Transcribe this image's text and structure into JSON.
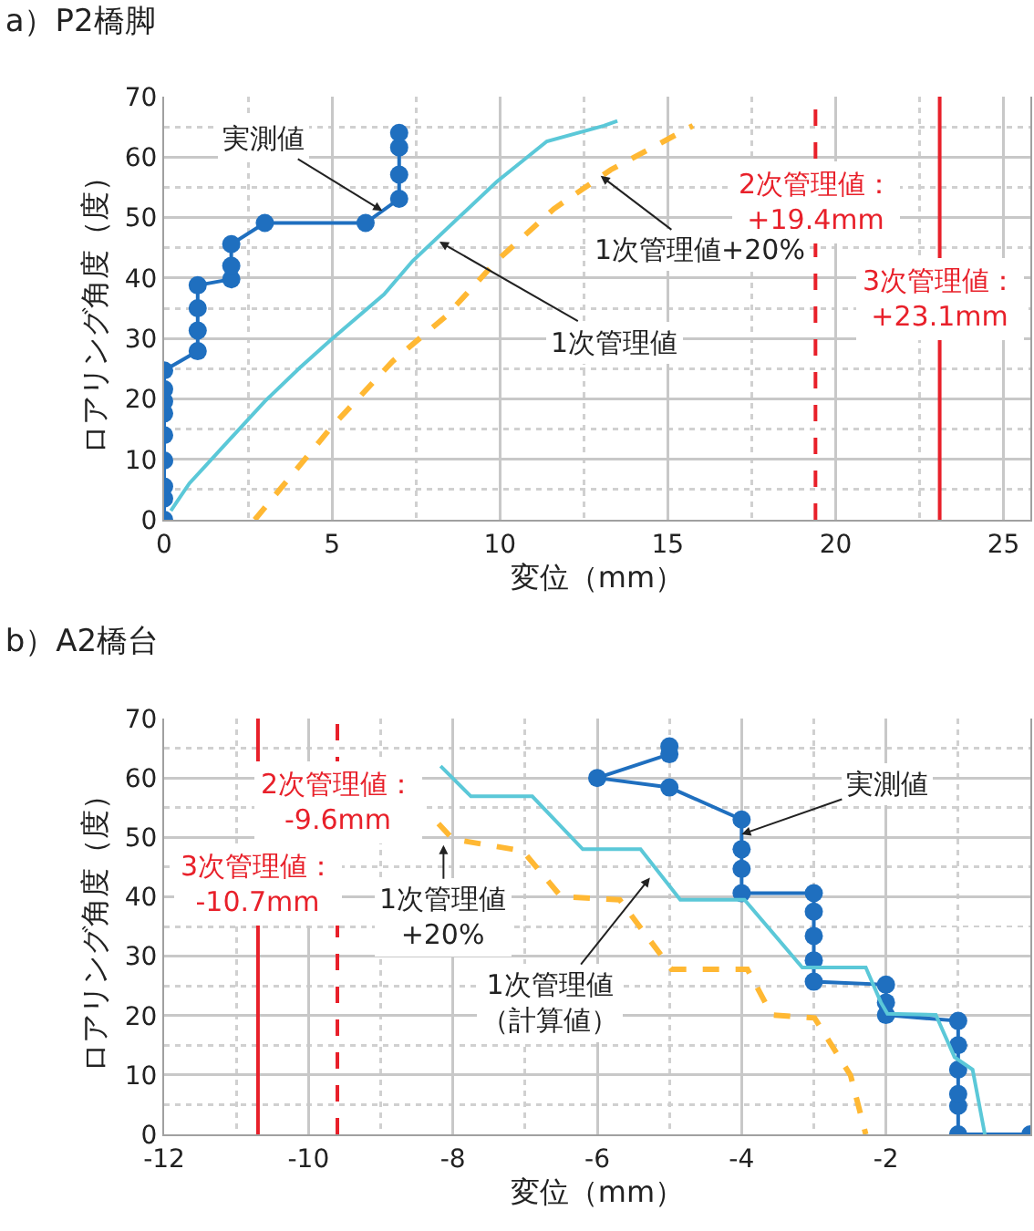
{
  "chart_data": [
    {
      "type": "line",
      "title": "a）P2橋脚",
      "xlabel": "変位（mm）",
      "ylabel": "ロアリング角度（度）",
      "xlim": [
        0,
        25.8
      ],
      "xticks": [
        0,
        5,
        10,
        15,
        20,
        25
      ],
      "ylim": [
        0,
        70
      ],
      "yticks": [
        0,
        10,
        20,
        30,
        40,
        50,
        60,
        70
      ],
      "grid": true,
      "series": [
        {
          "color": "#1f6fbf",
          "marker": "circle",
          "line_style": "solid",
          "x": [
            0,
            0,
            0,
            0,
            0,
            0,
            0,
            0,
            0,
            1,
            1,
            1,
            1,
            2,
            2,
            2,
            3,
            6,
            7,
            7,
            7,
            7
          ],
          "values": [
            0,
            3.5,
            5.5,
            9.8,
            14,
            17.6,
            19.6,
            21.6,
            24.7,
            27.9,
            31.3,
            35,
            38.8,
            39.8,
            42,
            45.6,
            49.1,
            49.1,
            53.1,
            57.1,
            61.6,
            64
          ]
        },
        {
          "color": "#5bc8d8",
          "marker": "none",
          "line_style": "solid",
          "x": [
            0.2,
            0.75,
            3,
            4.05,
            4.95,
            6.55,
            7.4,
            9.9,
            11.4,
            13.1,
            13.5
          ],
          "values": [
            1.5,
            6,
            19.6,
            25.2,
            29.7,
            37.3,
            42.8,
            55.9,
            62.6,
            65.2,
            66
          ]
        },
        {
          "color": "#ffb833",
          "marker": "none",
          "line_style": "dashed",
          "x": [
            2.7,
            4.95,
            6.8,
            8.4,
            9.9,
            11.6,
            13.3,
            15.75
          ],
          "values": [
            0,
            15.1,
            26.2,
            33.7,
            42.8,
            51.4,
            57.9,
            65.2
          ]
        }
      ],
      "ref_lines": [
        {
          "axis": "x",
          "value": 19.4,
          "label": "2次管理値：\n+19.4mm",
          "color": "#e8202a",
          "line_style": "dashed"
        },
        {
          "axis": "x",
          "value": 23.1,
          "label": "3次管理値：\n+23.1mm",
          "color": "#e8202a",
          "line_style": "solid"
        }
      ],
      "annotations": [
        {
          "text": "実測値",
          "x": 6.5,
          "y": 51.1
        },
        {
          "text": "1次管理値+20%",
          "x": 13,
          "y": 56.9
        },
        {
          "text": "1次管理値",
          "x": 8.2,
          "y": 46
        }
      ]
    },
    {
      "type": "line",
      "title": "b）A2橋台",
      "xlabel": "変位（mm）",
      "ylabel": "ロアリング角度（度）",
      "xlim": [
        -12,
        0
      ],
      "xticks": [
        -12,
        -10,
        -8,
        -6,
        -4,
        -2
      ],
      "ylim": [
        0,
        70
      ],
      "yticks": [
        0,
        10,
        20,
        30,
        40,
        50,
        60,
        70
      ],
      "grid": true,
      "series": [
        {
          "color": "#1f6fbf",
          "marker": "circle",
          "line_style": "solid",
          "x": [
            0,
            -1,
            -1,
            -1,
            -1,
            -1,
            -1,
            -2,
            -2,
            -2,
            -3,
            -3,
            -3,
            -3,
            -3,
            -4,
            -4,
            -4,
            -4,
            -5,
            -6,
            -5,
            -5
          ],
          "values": [
            0,
            0,
            4.8,
            6.8,
            10.9,
            15,
            19.1,
            20.1,
            22.2,
            25.2,
            25.7,
            29.3,
            33.4,
            37.5,
            40.6,
            40.6,
            44.7,
            48,
            53,
            58.4,
            60,
            64,
            65.3
          ]
        },
        {
          "color": "#5bc8d8",
          "marker": "none",
          "line_style": "solid",
          "x": [
            -8.17,
            -7.75,
            -6.9,
            -6.2,
            -5.4,
            -4.85,
            -3.96,
            -3.16,
            -2.28,
            -2.07,
            -1.98,
            -1.31,
            -1.05,
            -0.8,
            -0.63
          ],
          "values": [
            62,
            56.9,
            56.9,
            48,
            48,
            39.5,
            39.5,
            28.1,
            28.1,
            22.2,
            20.3,
            20.1,
            13,
            10.9,
            0
          ]
        },
        {
          "color": "#ffb833",
          "marker": "none",
          "line_style": "dashed",
          "x": [
            -8.2,
            -8,
            -7.03,
            -6.5,
            -5.69,
            -4.97,
            -3.92,
            -3.58,
            -2.99,
            -2.49,
            -2.28
          ],
          "values": [
            52.3,
            49.7,
            47.7,
            40,
            39.5,
            27.8,
            27.8,
            20.1,
            19.6,
            9.9,
            0
          ]
        }
      ],
      "ref_lines": [
        {
          "axis": "x",
          "value": -9.6,
          "label": "2次管理値：\n-9.6mm",
          "color": "#e8202a",
          "line_style": "dashed"
        },
        {
          "axis": "x",
          "value": -10.7,
          "label": "3次管理値：\n-10.7mm",
          "color": "#e8202a",
          "line_style": "solid"
        }
      ],
      "annotations": [
        {
          "text": "実測値",
          "x": -4,
          "y": 50.5
        },
        {
          "text": "1次管理値\n+20%",
          "x": -8.13,
          "y": 48.7
        },
        {
          "text": "1次管理値（計算値）",
          "x": -5.27,
          "y": 43.2
        }
      ]
    }
  ]
}
